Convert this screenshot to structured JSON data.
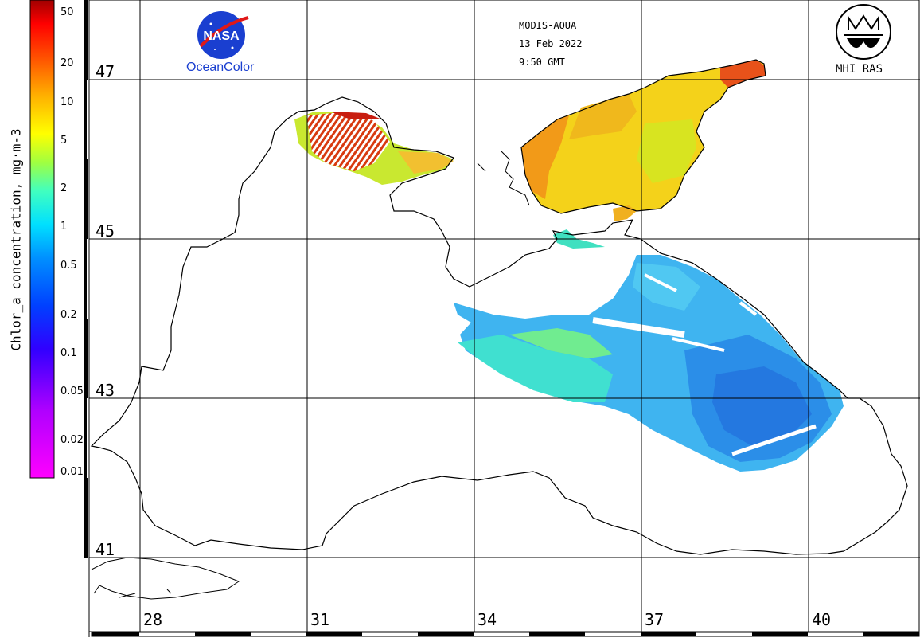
{
  "header": {
    "sensor": "MODIS-AQUA",
    "date": "13 Feb 2022",
    "time": "9:50 GMT"
  },
  "logos": {
    "nasa_label": "OceanColor",
    "nasa_wordmark": "NASA",
    "mhi_label": "MHI RAS"
  },
  "colorbar": {
    "title": "Chlor_a concentration, mg·m-3",
    "ticks": [
      "50",
      "20",
      "10",
      "5",
      "2",
      "1",
      "0.5",
      "0.2",
      "0.1",
      "0.05",
      "0.02",
      "0.01"
    ],
    "scale": "log",
    "range": [
      0.01,
      60
    ],
    "colors": [
      "#ff00ff",
      "#8000ff",
      "#0000ff",
      "#0080ff",
      "#00ffff",
      "#80ff40",
      "#ffff00",
      "#ff8000",
      "#ff0000",
      "#a00000"
    ]
  },
  "map": {
    "latitudes": [
      "47",
      "45",
      "43",
      "41"
    ],
    "longitudes": [
      "28",
      "31",
      "34",
      "37",
      "40"
    ]
  }
}
